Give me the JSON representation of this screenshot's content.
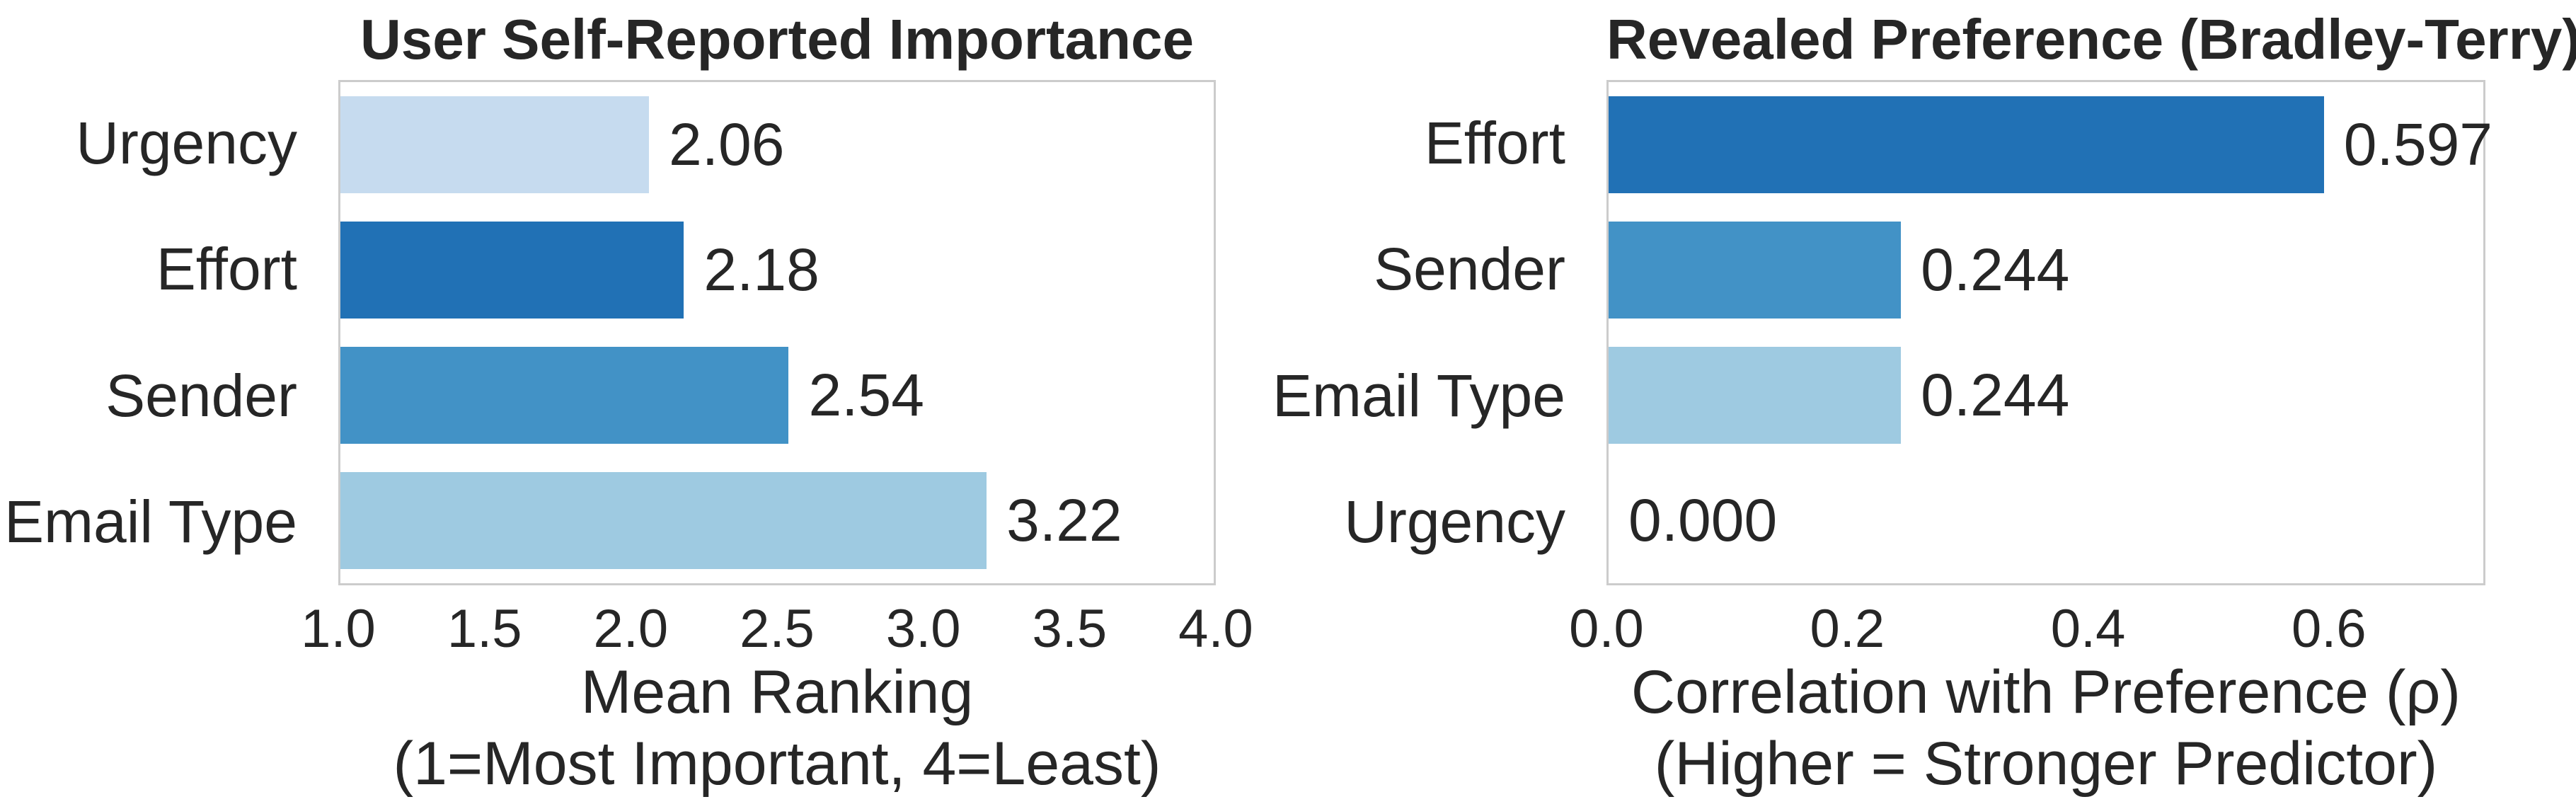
{
  "styles": {
    "background": "#ffffff",
    "text_color": "#262626",
    "spine_color": "#cccccc",
    "palette_blues": [
      "#c6dbef",
      "#2171b5",
      "#4292c6",
      "#9ecae1"
    ]
  },
  "chart_data": [
    {
      "type": "bar",
      "orientation": "horizontal",
      "title": "User Self-Reported Importance",
      "categories": [
        "Urgency",
        "Effort",
        "Sender",
        "Email Type"
      ],
      "values": [
        2.06,
        2.18,
        2.54,
        3.22
      ],
      "value_labels": [
        "2.06",
        "2.18",
        "2.54",
        "3.22"
      ],
      "bar_colors": [
        "#c6dbef",
        "#2171b5",
        "#4292c6",
        "#9ecae1"
      ],
      "xlim": [
        1.0,
        4.0
      ],
      "xticks": [
        "1.0",
        "1.5",
        "2.0",
        "2.5",
        "3.0",
        "3.5",
        "4.0"
      ],
      "xtick_values": [
        1.0,
        1.5,
        2.0,
        2.5,
        3.0,
        3.5,
        4.0
      ],
      "xlabel_line1": "Mean Ranking",
      "xlabel_line2": "(1=Most Important, 4=Least)",
      "grid": false,
      "legend": null
    },
    {
      "type": "bar",
      "orientation": "horizontal",
      "title": "Revealed Preference (Bradley-Terry)",
      "categories": [
        "Effort",
        "Sender",
        "Email Type",
        "Urgency"
      ],
      "values": [
        0.597,
        0.244,
        0.244,
        0.0
      ],
      "value_labels": [
        "0.597",
        "0.244",
        "0.244",
        "0.000"
      ],
      "bar_colors": [
        "#2171b5",
        "#4292c6",
        "#9ecae1",
        "#c6dbef"
      ],
      "xlim": [
        0.0,
        0.73
      ],
      "xticks": [
        "0.0",
        "0.2",
        "0.4",
        "0.6"
      ],
      "xtick_values": [
        0.0,
        0.2,
        0.4,
        0.6
      ],
      "xlabel_line1": "Correlation with Preference (ρ)",
      "xlabel_line2": "(Higher = Stronger Predictor)",
      "grid": false,
      "legend": null
    }
  ]
}
